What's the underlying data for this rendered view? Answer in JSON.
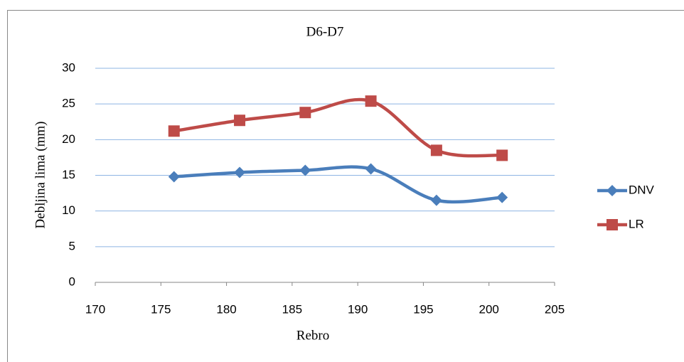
{
  "chart_data": {
    "type": "line",
    "title": "D6-D7",
    "x_label": "Rebro",
    "y_label": "Debljina lima (mm)",
    "x": [
      176,
      181,
      186,
      191,
      196,
      201
    ],
    "series": [
      {
        "name": "DNV",
        "color": "#4a7ebb",
        "marker": "diamond",
        "values": [
          14.8,
          15.4,
          15.7,
          15.9,
          11.5,
          11.9
        ]
      },
      {
        "name": "LR",
        "color": "#be4b48",
        "marker": "square",
        "values": [
          21.2,
          22.7,
          23.8,
          25.4,
          18.5,
          17.8
        ]
      }
    ],
    "xlim": [
      170,
      205
    ],
    "xticks": [
      170,
      175,
      180,
      185,
      190,
      195,
      200,
      205
    ],
    "ylim": [
      0,
      30
    ],
    "yticks": [
      0,
      5,
      10,
      15,
      20,
      25,
      30
    ],
    "grid": true,
    "smooth": true,
    "legend": "right"
  }
}
